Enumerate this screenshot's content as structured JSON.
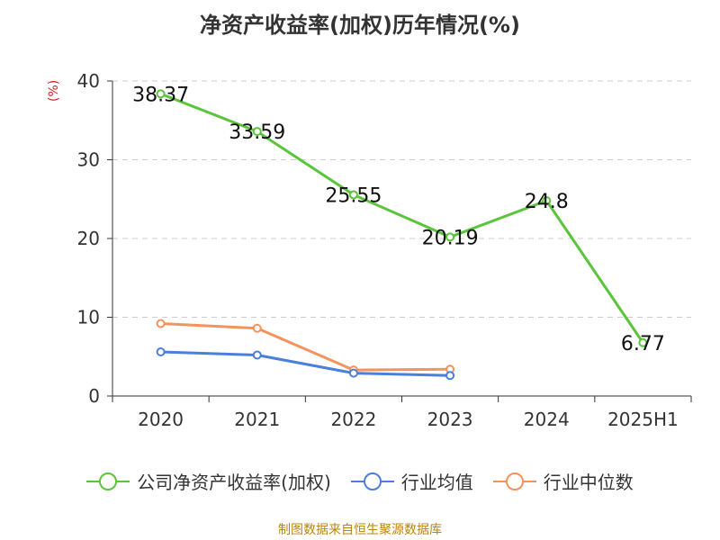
{
  "chart_data": {
    "type": "line",
    "title": "净资产收益率(加权)历年情况(%)",
    "ylabel": "(%)",
    "categories": [
      "2020",
      "2021",
      "2022",
      "2023",
      "2024",
      "2025H1"
    ],
    "ylim": [
      0,
      40
    ],
    "yticks": [
      0,
      10,
      20,
      30,
      40
    ],
    "grid": true,
    "legend_position": "bottom",
    "series": [
      {
        "name": "公司净资产收益率(加权)",
        "color": "#5ac53a",
        "values": [
          38.37,
          33.59,
          25.55,
          20.19,
          24.8,
          6.77
        ],
        "labels": [
          "38.37",
          "33.59",
          "25.55",
          "20.19",
          "24.8",
          "6.77"
        ]
      },
      {
        "name": "行业均值",
        "color": "#4a7fdc",
        "values": [
          5.6,
          5.2,
          2.9,
          2.6,
          null,
          null
        ]
      },
      {
        "name": "行业中位数",
        "color": "#f4935c",
        "values": [
          9.2,
          8.6,
          3.3,
          3.4,
          null,
          null
        ]
      }
    ]
  },
  "source": "制图数据来自恒生聚源数据库"
}
